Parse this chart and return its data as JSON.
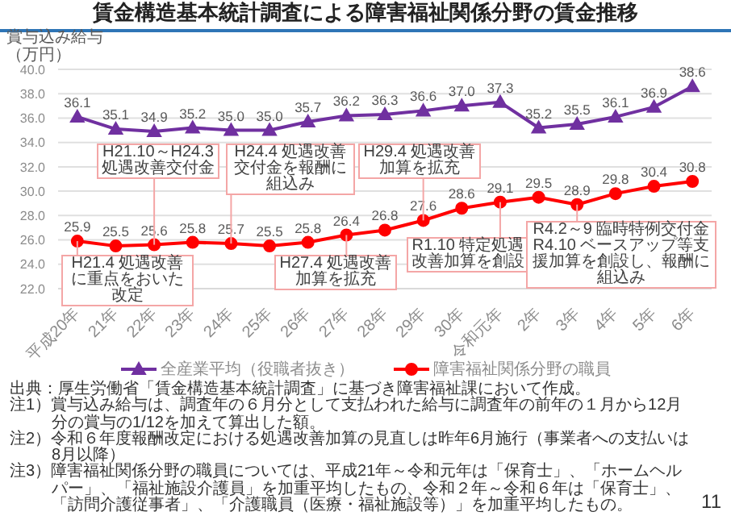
{
  "chart_data": {
    "type": "line",
    "title": "賃金構造基本統計調査による障害福祉関係分野の賃金推移",
    "ylabel": "賞与込み給与（万円）",
    "categories": [
      "平成20年",
      "21年",
      "22年",
      "23年",
      "24年",
      "25年",
      "26年",
      "27年",
      "28年",
      "29年",
      "30年",
      "令和元年",
      "2年",
      "3年",
      "4年",
      "5年",
      "6年"
    ],
    "series": [
      {
        "name": "全産業平均（役職者抜き）",
        "color": "#7030a0",
        "marker": "triangle",
        "values": [
          36.1,
          35.1,
          34.9,
          35.2,
          35.0,
          35.0,
          35.7,
          36.2,
          36.3,
          36.6,
          37.0,
          37.3,
          35.2,
          35.5,
          36.1,
          36.9,
          38.6
        ],
        "value_labels": [
          "36.1",
          "35.1",
          "34.9",
          "35.2",
          "35.0",
          "35.0",
          "35.7",
          "36.2",
          "36.3",
          "36.6",
          "37.0",
          "37.3",
          "35.2",
          "35.5",
          "36.1",
          "36.9",
          "38.6"
        ]
      },
      {
        "name": "障害福祉関係分野の職員",
        "color": "#ff0000",
        "marker": "circle",
        "values": [
          25.9,
          25.5,
          25.6,
          25.8,
          25.7,
          25.5,
          25.8,
          26.4,
          26.8,
          27.6,
          28.6,
          29.1,
          29.5,
          28.9,
          29.8,
          30.4,
          30.8
        ],
        "value_labels": [
          "25.9",
          "25.5",
          "25.6",
          "25.8",
          "25.7",
          "25.5",
          "25.8",
          "26.4",
          "26.8",
          "27.6",
          "28.6",
          "29.1",
          "29.5",
          "28.9",
          "29.8",
          "30.4",
          "30.8"
        ]
      }
    ],
    "ylim": [
      22,
      40
    ],
    "yticks": [
      {
        "value": 22,
        "label": "22.0"
      },
      {
        "value": 24,
        "label": "24.0"
      },
      {
        "value": 26,
        "label": "26.0"
      },
      {
        "value": 28,
        "label": "28.0"
      },
      {
        "value": 30,
        "label": "30.0"
      },
      {
        "value": 32,
        "label": "32.0"
      },
      {
        "value": 34,
        "label": "34.0"
      },
      {
        "value": 36,
        "label": "36.0"
      },
      {
        "value": 38,
        "label": "38.0"
      },
      {
        "value": 40,
        "label": "40.0"
      }
    ],
    "grid": "y",
    "legend": "bottom",
    "line_style": "solid",
    "annotations": [
      {
        "text": "H21.4 処遇改善に重点をおいた改定",
        "x": "平成20年",
        "y": 25.9
      },
      {
        "text": "H21.10～H24.3 処遇改善交付金",
        "x": "22年",
        "y": 25.6
      },
      {
        "text": "H24.4 処遇改善交付金を報酬に組込み",
        "x": "24年",
        "y": 25.7
      },
      {
        "text": "H27.4 処遇改善加算を拡充",
        "x": "27年",
        "y": 26.4
      },
      {
        "text": "H29.4 処遇改善加算を拡充",
        "x": "29年",
        "y": 27.6
      },
      {
        "text": "R1.10 特定処遇改善加算を創設",
        "x": "令和元年",
        "y": 29.1
      },
      {
        "text": "R4.2～9 臨時特例交付金 R4.10 ベースアップ等支援加算を創設し、報酬に組込み",
        "x": "3年",
        "y": 28.9
      },
      "出典：厚生労働省「賃金構造基本統計調査」に基づき障害福祉課において作成。",
      "注1）賞与込み給与は、調査年の６月分として支払われた給与に調査年の前年の１月から12月分の賞与の1/12を加えて算出した額。",
      "注2）令和６年度報酬改定における処遇改善加算の見直しは昨年6月施行（事業者への支払いは8月以降）",
      "注3）障害福祉関係分野の職員については、平成21年～令和元年は「保育士」、「ホームヘルパー」、「福祉施設介護員」を加重平均したもの、令和２年～令和６年は「保育士」、「訪問介護従事者」、「介護職員（医療・福祉施設等）」を加重平均したもの。",
      "11"
    ]
  }
}
